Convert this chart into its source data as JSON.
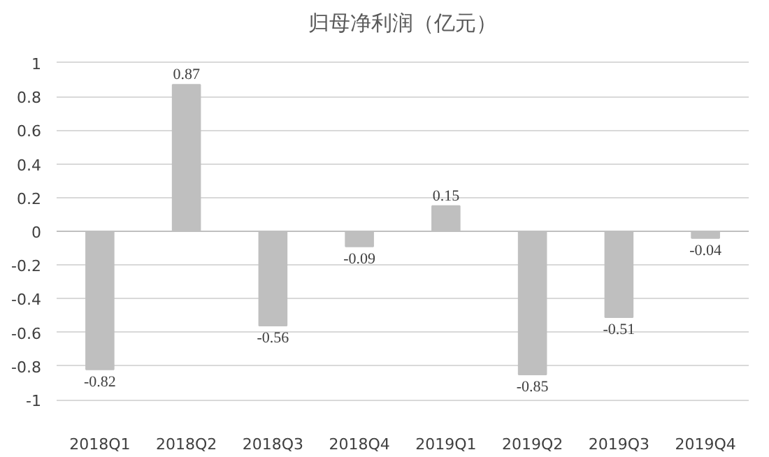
{
  "chart_data": {
    "type": "bar",
    "title": "归母净利润（亿元）",
    "categories": [
      "2018Q1",
      "2018Q2",
      "2018Q3",
      "2018Q4",
      "2019Q1",
      "2019Q2",
      "2019Q3",
      "2019Q4"
    ],
    "values": [
      -0.82,
      0.87,
      -0.56,
      -0.09,
      0.15,
      -0.85,
      -0.51,
      -0.04
    ],
    "color": "#bfbfbf",
    "ylim": [
      -1,
      1
    ],
    "yticks": [
      -1,
      -0.8,
      -0.6,
      -0.4,
      -0.2,
      0,
      0.2,
      0.4,
      0.6,
      0.8,
      1
    ],
    "grid": "y",
    "data_labels": true
  }
}
